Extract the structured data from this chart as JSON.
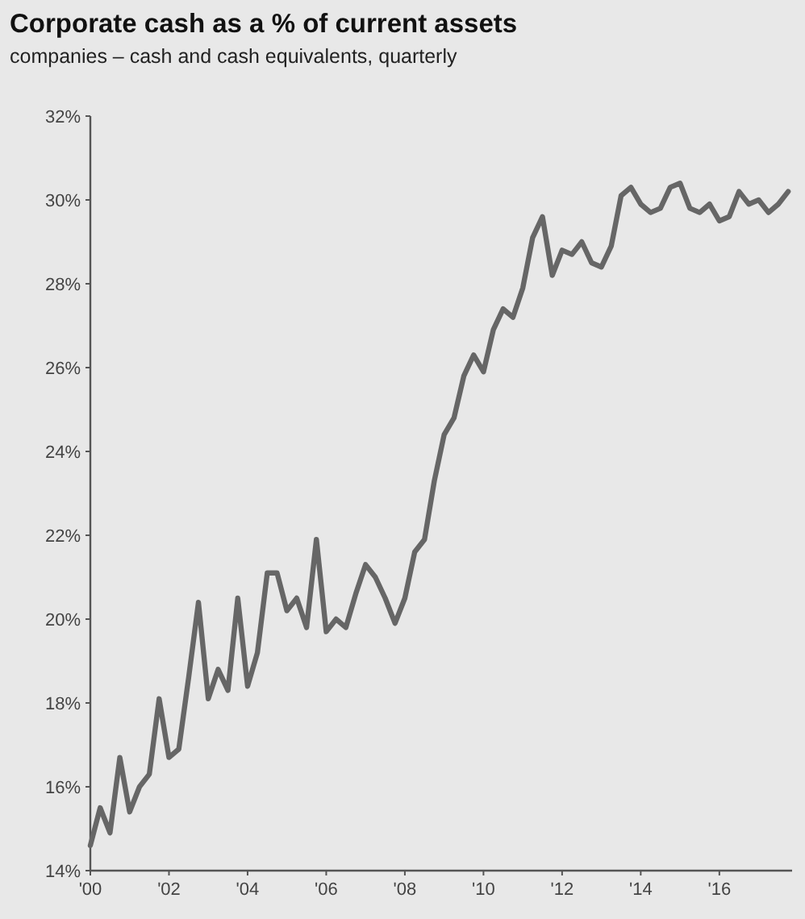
{
  "chart_data": {
    "type": "line",
    "title": "Corporate cash as a % of current assets",
    "subtitle": "companies – cash and cash equivalents, quarterly",
    "x": [
      2000,
      2000.25,
      2000.5,
      2000.75,
      2001,
      2001.25,
      2001.5,
      2001.75,
      2002,
      2002.25,
      2002.5,
      2002.75,
      2003,
      2003.25,
      2003.5,
      2003.75,
      2004,
      2004.25,
      2004.5,
      2004.75,
      2005,
      2005.25,
      2005.5,
      2005.75,
      2006,
      2006.25,
      2006.5,
      2006.75,
      2007,
      2007.25,
      2007.5,
      2007.75,
      2008,
      2008.25,
      2008.5,
      2008.75,
      2009,
      2009.25,
      2009.5,
      2009.75,
      2010,
      2010.25,
      2010.5,
      2010.75,
      2011,
      2011.25,
      2011.5,
      2011.75,
      2012,
      2012.25,
      2012.5,
      2012.75,
      2013,
      2013.25,
      2013.5,
      2013.75,
      2014,
      2014.25,
      2014.5,
      2014.75,
      2015,
      2015.25,
      2015.5,
      2015.75,
      2016,
      2016.25,
      2016.5,
      2016.75,
      2017,
      2017.25,
      2017.5,
      2017.75
    ],
    "series": [
      {
        "color": "#666666",
        "values": [
          14.6,
          15.5,
          14.9,
          16.7,
          15.4,
          16.0,
          16.3,
          18.1,
          16.7,
          16.9,
          18.6,
          20.4,
          18.1,
          18.8,
          18.3,
          20.5,
          18.4,
          19.2,
          21.1,
          21.1,
          20.2,
          20.5,
          19.8,
          21.9,
          19.7,
          20.0,
          19.8,
          20.6,
          21.3,
          21.0,
          20.5,
          19.9,
          20.5,
          21.6,
          21.9,
          23.3,
          24.4,
          24.8,
          25.8,
          26.3,
          25.9,
          26.9,
          27.4,
          27.2,
          27.9,
          29.1,
          29.6,
          28.2,
          28.8,
          28.7,
          29.0,
          28.5,
          28.4,
          28.9,
          30.1,
          30.3,
          29.9,
          29.7,
          29.8,
          30.3,
          30.4,
          29.8,
          29.7,
          29.9,
          29.5,
          29.6,
          30.2,
          29.9,
          30.0,
          29.7,
          29.9,
          30.2
        ]
      }
    ],
    "xlim": [
      2000,
      2017.85
    ],
    "xticks": [
      {
        "value": 2000,
        "label": "'00"
      },
      {
        "value": 2002,
        "label": "'02"
      },
      {
        "value": 2004,
        "label": "'04"
      },
      {
        "value": 2006,
        "label": "'06"
      },
      {
        "value": 2008,
        "label": "'08"
      },
      {
        "value": 2010,
        "label": "'10"
      },
      {
        "value": 2012,
        "label": "'12"
      },
      {
        "value": 2014,
        "label": "'14"
      },
      {
        "value": 2016,
        "label": "'16"
      }
    ],
    "ylim": [
      14,
      32
    ],
    "yticks": [
      {
        "value": 14,
        "label": "14%"
      },
      {
        "value": 16,
        "label": "16%"
      },
      {
        "value": 18,
        "label": "18%"
      },
      {
        "value": 20,
        "label": "20%"
      },
      {
        "value": 22,
        "label": "22%"
      },
      {
        "value": 24,
        "label": "24%"
      },
      {
        "value": 26,
        "label": "26%"
      },
      {
        "value": 28,
        "label": "28%"
      },
      {
        "value": 30,
        "label": "30%"
      },
      {
        "value": 32,
        "label": "32%"
      }
    ],
    "line_style": "solid"
  }
}
